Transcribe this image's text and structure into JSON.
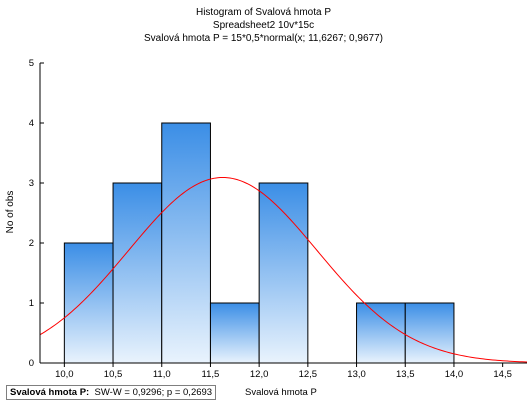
{
  "chart_data": {
    "type": "bar",
    "title": "Histogram of Svalová hmota P",
    "subtitle": "Spreadsheet2 10v*15c",
    "curve_label": "Svalová hmota P = 15*0,5*normal(x; 11,6267; 0,9677)",
    "xlabel": "Svalová hmota P",
    "ylabel": "No of obs",
    "bin_edges": [
      10.0,
      10.5,
      11.0,
      11.5,
      12.0,
      12.5,
      13.0,
      13.5,
      14.0
    ],
    "counts": [
      2,
      3,
      4,
      1,
      3,
      0,
      1,
      1
    ],
    "xlim": [
      9.75,
      14.75
    ],
    "ylim": [
      0,
      5
    ],
    "x_ticks": [
      "10,0",
      "10,5",
      "11,0",
      "11,5",
      "12,0",
      "12,5",
      "13,0",
      "13,5",
      "14,0",
      "14,5"
    ],
    "x_tick_values": [
      10.0,
      10.5,
      11.0,
      11.5,
      12.0,
      12.5,
      13.0,
      13.5,
      14.0,
      14.5
    ],
    "y_ticks": [
      "0",
      "1",
      "2",
      "3",
      "4",
      "5"
    ],
    "y_tick_values": [
      0,
      1,
      2,
      3,
      4,
      5
    ],
    "normal_fit": {
      "n": 15,
      "bin_width": 0.5,
      "mean": 11.6267,
      "sd": 0.9677
    },
    "grid": false,
    "colors": {
      "bar_top": "#3b8ee6",
      "bar_bottom": "#e9f3fd",
      "bar_stroke": "#000000",
      "curve": "#ff0000"
    }
  },
  "stats": {
    "variable": "Svalová hmota P:",
    "text": "SW-W = 0,9296; p = 0,2693"
  }
}
